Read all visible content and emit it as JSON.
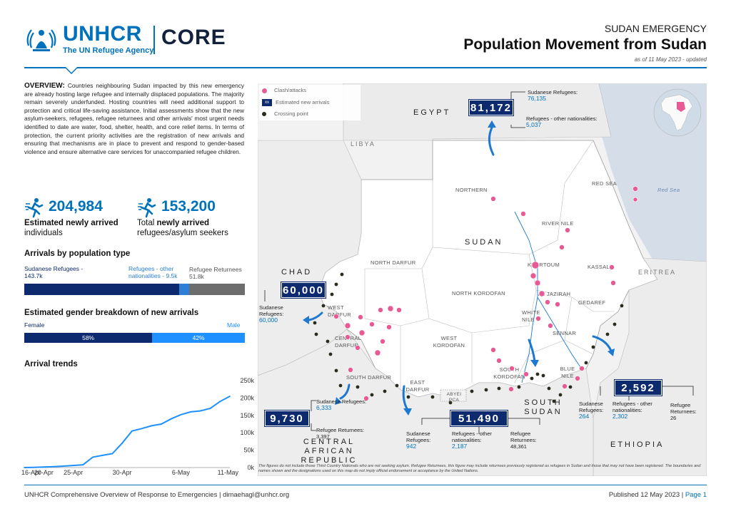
{
  "header": {
    "org_name": "UNHCR",
    "org_tagline": "The UN Refugee Agency",
    "product": "CORE",
    "kicker": "SUDAN EMERGENCY",
    "title": "Population Movement from Sudan",
    "date": "as of 11 May 2023 - updated"
  },
  "overview": {
    "heading": "OVERVIEW:",
    "text": " Countries neighbouring Sudan impacted by this new emergency are already hosting large refugee and internally displaced populations. The majority remain severely underfunded. Hosting countries will need additional support to protection and critical life-saving assistance. Initial assessments show that the new asylum-seekers, refugees, refugee returnees and other arrivals' most urgent needs identified to date are water, food, shelter, health, and core relief items. In terms of protection, the current priority activities are the registration of new arrivals and ensuring that mechanisms are in place to prevent and respond to gender-based violence and ensure alternative care services for unaccompanied refugee children."
  },
  "stats": [
    {
      "value": "204,984",
      "label_bold": "Estimated newly arrived",
      "label_rest": "individuals",
      "icon": "running-person-icon"
    },
    {
      "value": "153,200",
      "label_pre": "Total ",
      "label_bold": "newly arrived",
      "label_rest": "refugees/asylum seekers",
      "icon": "running-person-icon"
    }
  ],
  "population": {
    "title": "Arrivals by population type",
    "groups": [
      {
        "label": "Sudanese Refugees - 143.7k",
        "value_k": 143.7,
        "color": "#0d2a6e",
        "label_color": "#0d2a6e"
      },
      {
        "label": "Refugees - other nationalities - 9.5k",
        "value_k": 9.5,
        "color": "#2d7fd8",
        "label_color": "#2d7fd8"
      },
      {
        "label": "Refugee Returnees 51.8k",
        "value_k": 51.8,
        "color": "#6d6d6d",
        "label_color": "#555555"
      }
    ]
  },
  "gender": {
    "title": "Estimated gender breakdown of new arrivals",
    "female_label": "Female",
    "male_label": "Male",
    "female_pct": 58,
    "male_pct": 42,
    "female_text": "58%",
    "male_text": "42%",
    "female_color": "#0d2a6e",
    "male_color": "#1e90ff"
  },
  "chart_data": {
    "type": "line",
    "title": "Arrival trends",
    "x": [
      "16-Apr",
      "18-Apr",
      "20-Apr",
      "22-Apr",
      "24-Apr",
      "25-Apr",
      "26-Apr",
      "27-Apr",
      "28-Apr",
      "29-Apr",
      "30-Apr",
      "1-May",
      "2-May",
      "3-May",
      "4-May",
      "5-May",
      "6-May",
      "7-May",
      "8-May",
      "9-May",
      "10-May",
      "11-May"
    ],
    "x_tick_labels": [
      "16-Apr",
      "20-Apr",
      "25-Apr",
      "30-Apr",
      "6-May",
      "11-May"
    ],
    "series": [
      {
        "values": [
          0,
          500,
          1500,
          2500,
          4000,
          6000,
          8000,
          30000,
          35000,
          40000,
          70000,
          105000,
          112000,
          120000,
          125000,
          140000,
          152000,
          160000,
          163000,
          170000,
          190000,
          205000
        ]
      }
    ],
    "y_ticks": [
      "0k",
      "50k",
      "100k",
      "150k",
      "200k",
      "250k"
    ],
    "ylim": [
      0,
      250000
    ],
    "line_color": "#1e90ff",
    "grid": false
  },
  "map": {
    "legend": [
      {
        "label": "Clash/attacks",
        "symbol": "pink-dot"
      },
      {
        "label": "Estimated new arrivals",
        "symbol": "xx-box",
        "box_text": "xx"
      },
      {
        "label": "Crossing point",
        "symbol": "dark-dot"
      }
    ],
    "countries": {
      "egypt": "EGYPT",
      "libya": "LIBYA",
      "chad": "CHAD",
      "sudan": "SUDAN",
      "car": "CENTRAL AFRICAN REPUBLIC",
      "south_sudan": "SOUTH SUDAN",
      "ethiopia": "ETHIOPIA",
      "eritrea": "ERITREA"
    },
    "sea": "Red Sea",
    "states": [
      "NORTHERN",
      "RED SEA",
      "RIVER NILE",
      "NORTH DARFUR",
      "KHARTOUM",
      "KASSALA",
      "NORTH KORDOFAN",
      "AL JAZIRAH",
      "GEDAREF",
      "WEST DARFUR",
      "WHITE NILE",
      "SENNAR",
      "CENTRAL DARFUR",
      "WEST KORDOFAN",
      "SOUTH DARFUR",
      "SOUTH KORDOFAN",
      "BLUE NILE",
      "EAST DARFUR",
      "ABYEI PCA"
    ],
    "arrivals": {
      "egypt": {
        "total": "81,172",
        "sud_label": "Sudanese Refugees:",
        "sud": "76,135",
        "oth_label": "Refugees - other nationalities:",
        "oth": "5,037"
      },
      "chad": {
        "total": "60,000",
        "sud_label": "Sudanese Refugees:",
        "sud": "60,000"
      },
      "car": {
        "total": "9,730",
        "sud_label": "Sudanese Refugees:",
        "sud": "6,333",
        "ret_label": "Refugee Returnees:",
        "ret": "3,397"
      },
      "south_sudan": {
        "total": "51,490",
        "sud_label": "Sudanese Refugees:",
        "sud": "942",
        "oth_label": "Refugees - other nationalities:",
        "oth": "2,187",
        "ret_label": "Refugee Returnees:",
        "ret": "48,361"
      },
      "ethiopia": {
        "total": "2,592",
        "sud_label": "Sudanese Refugees:",
        "sud": "264",
        "oth_label": "Refugees - other nationalities:",
        "oth": "2,302",
        "ret_label": "Refugee Returnees:",
        "ret": "26"
      }
    },
    "footnote": "The figures do not include those Third Country Nationals who are not seeking asylum. Refugee Returnees, this figure may include returnees previously registered as refugees in Sudan and those that may not have been registered. The boundaries and names shown and the designations used on this map do not imply official endorsement or acceptance by the United Nations."
  },
  "footer": {
    "left": "UNHCR Comprehensive Overview of Response to Emergencies | dimaehagl@unhcr.org",
    "published": "Published 12 May 2023 | ",
    "page": "Page 1"
  }
}
